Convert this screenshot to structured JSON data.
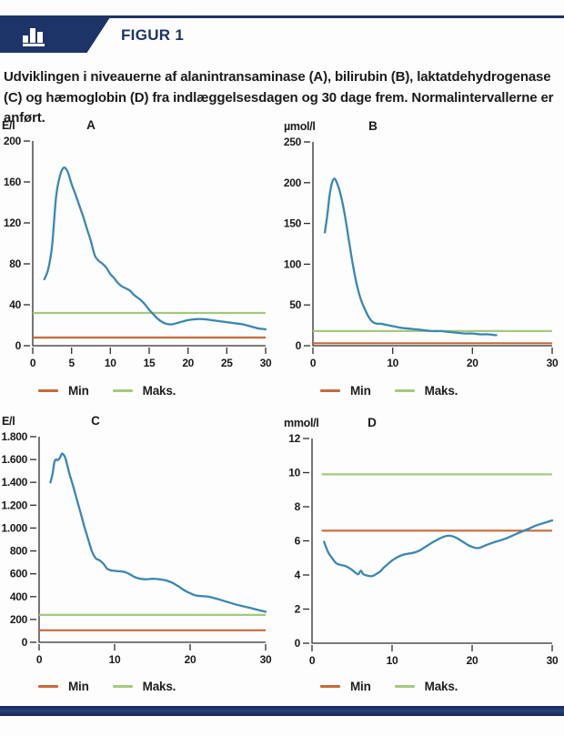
{
  "header": {
    "label": "FIGUR 1"
  },
  "caption": "Udviklingen i niveauerne af alanintransaminase (A), bilirubin (B), laktatdehydrogenase (C) og hæmoglobin (D) fra indlæggelsesdagen og 30 dage frem. Normalintervallerne er anført.",
  "legend": {
    "min_label": "Min",
    "maks_label": "Maks."
  },
  "colors": {
    "navy": "#1d3468",
    "blue": "#3a87b3",
    "orange": "#c7693b",
    "green": "#a4c97c",
    "axis": "#2e2e2e"
  },
  "chart_data": [
    {
      "id": "A",
      "type": "line",
      "title": "A",
      "ylabel": "E/l",
      "xlabel": "",
      "xlim": [
        0,
        30
      ],
      "ylim": [
        0,
        200
      ],
      "x_tick_values": [
        0,
        5,
        10,
        15,
        20,
        25,
        30
      ],
      "x_tick_labels": [
        "0",
        "5",
        "10",
        "15",
        "20",
        "25",
        "30"
      ],
      "y_tick_values": [
        0,
        40,
        80,
        120,
        160,
        200
      ],
      "y_tick_labels": [
        "0",
        "40",
        "80",
        "120",
        "160",
        "200"
      ],
      "normal_min": 8,
      "normal_max": 32,
      "grid": false,
      "legend_entries": [
        "Min",
        "Maks."
      ],
      "series": [
        {
          "name": "alanintransaminase",
          "points": [
            [
              1.5,
              65
            ],
            [
              2,
              75
            ],
            [
              2.5,
              98
            ],
            [
              3,
              145
            ],
            [
              3.5,
              166
            ],
            [
              4,
              174
            ],
            [
              4.5,
              170
            ],
            [
              5,
              158
            ],
            [
              5.5,
              148
            ],
            [
              6,
              137
            ],
            [
              6.5,
              126
            ],
            [
              7,
              114
            ],
            [
              7.5,
              102
            ],
            [
              8,
              88
            ],
            [
              8.5,
              83
            ],
            [
              9,
              80
            ],
            [
              9.5,
              76
            ],
            [
              10,
              70
            ],
            [
              10.5,
              66
            ],
            [
              11,
              61
            ],
            [
              11.5,
              58
            ],
            [
              12,
              56
            ],
            [
              12.5,
              54
            ],
            [
              13,
              50
            ],
            [
              13.5,
              47
            ],
            [
              14,
              44
            ],
            [
              14.5,
              40
            ],
            [
              15,
              35
            ],
            [
              15.5,
              31
            ],
            [
              16,
              27
            ],
            [
              16.5,
              24
            ],
            [
              17,
              22
            ],
            [
              17.5,
              21
            ],
            [
              18,
              21
            ],
            [
              18.5,
              22
            ],
            [
              19,
              23
            ],
            [
              19.5,
              24
            ],
            [
              20,
              25
            ],
            [
              21,
              26
            ],
            [
              22,
              26
            ],
            [
              23,
              25
            ],
            [
              24,
              24
            ],
            [
              25,
              23
            ],
            [
              26,
              22
            ],
            [
              27,
              21
            ],
            [
              28,
              19
            ],
            [
              29,
              17
            ],
            [
              30,
              16
            ]
          ]
        }
      ]
    },
    {
      "id": "B",
      "type": "line",
      "title": "B",
      "ylabel": "µmol/l",
      "xlabel": "",
      "xlim": [
        0,
        30
      ],
      "ylim": [
        0,
        250
      ],
      "x_tick_values": [
        0,
        10,
        20,
        30
      ],
      "x_tick_labels": [
        "0",
        "10",
        "20",
        "30"
      ],
      "y_tick_values": [
        0,
        50,
        100,
        150,
        200,
        250
      ],
      "y_tick_labels": [
        "0",
        "50",
        "100",
        "150",
        "200",
        "250"
      ],
      "normal_min": 3,
      "normal_max": 18,
      "grid": false,
      "legend_entries": [
        "Min",
        "Maks."
      ],
      "series": [
        {
          "name": "bilirubin",
          "points": [
            [
              1.5,
              139
            ],
            [
              1.8,
              160
            ],
            [
              2.1,
              185
            ],
            [
              2.4,
              200
            ],
            [
              2.7,
              205
            ],
            [
              3,
              200
            ],
            [
              3.3,
              192
            ],
            [
              3.6,
              180
            ],
            [
              4,
              160
            ],
            [
              4.5,
              130
            ],
            [
              5,
              100
            ],
            [
              5.5,
              75
            ],
            [
              6,
              57
            ],
            [
              6.5,
              45
            ],
            [
              7,
              35
            ],
            [
              7.5,
              29
            ],
            [
              8,
              27
            ],
            [
              8.5,
              27
            ],
            [
              9,
              26
            ],
            [
              9.5,
              25
            ],
            [
              10,
              24
            ],
            [
              11,
              22
            ],
            [
              12,
              21
            ],
            [
              13,
              20
            ],
            [
              14,
              19
            ],
            [
              15,
              18
            ],
            [
              16,
              18
            ],
            [
              17,
              17
            ],
            [
              18,
              16
            ],
            [
              19,
              15
            ],
            [
              20,
              15
            ],
            [
              21,
              14
            ],
            [
              22,
              14
            ],
            [
              23,
              13
            ]
          ]
        }
      ]
    },
    {
      "id": "C",
      "type": "line",
      "title": "C",
      "ylabel": "E/l",
      "xlabel": "",
      "xlim": [
        0,
        30
      ],
      "ylim": [
        0,
        1800
      ],
      "x_tick_values": [
        0,
        10,
        20,
        30
      ],
      "x_tick_labels": [
        "0",
        "10",
        "20",
        "30"
      ],
      "y_tick_values": [
        0,
        200,
        400,
        600,
        800,
        1000,
        1200,
        1400,
        1600,
        1800
      ],
      "y_tick_labels": [
        "0",
        "200",
        "400",
        "600",
        "800",
        "1.000",
        "1.200",
        "1.400",
        "1.600",
        "1.800"
      ],
      "normal_min": 105,
      "normal_max": 240,
      "grid": false,
      "legend_entries": [
        "Min",
        "Maks."
      ],
      "series": [
        {
          "name": "laktatdehydrogenase",
          "points": [
            [
              1.5,
              1400
            ],
            [
              1.8,
              1480
            ],
            [
              2,
              1570
            ],
            [
              2.2,
              1600
            ],
            [
              2.5,
              1595
            ],
            [
              2.8,
              1620
            ],
            [
              3,
              1650
            ],
            [
              3.2,
              1645
            ],
            [
              3.5,
              1610
            ],
            [
              4,
              1480
            ],
            [
              4.5,
              1370
            ],
            [
              5,
              1250
            ],
            [
              5.5,
              1130
            ],
            [
              6,
              1010
            ],
            [
              6.5,
              900
            ],
            [
              7,
              795
            ],
            [
              7.5,
              735
            ],
            [
              8,
              718
            ],
            [
              8.5,
              690
            ],
            [
              9,
              645
            ],
            [
              9.5,
              630
            ],
            [
              10,
              626
            ],
            [
              10.5,
              622
            ],
            [
              11,
              620
            ],
            [
              11.5,
              612
            ],
            [
              12,
              596
            ],
            [
              12.5,
              576
            ],
            [
              13,
              562
            ],
            [
              13.5,
              555
            ],
            [
              14,
              552
            ],
            [
              14.5,
              553
            ],
            [
              15,
              556
            ],
            [
              15.5,
              554
            ],
            [
              16,
              551
            ],
            [
              16.5,
              546
            ],
            [
              17,
              538
            ],
            [
              17.5,
              525
            ],
            [
              18,
              508
            ],
            [
              18.5,
              488
            ],
            [
              19,
              465
            ],
            [
              19.5,
              445
            ],
            [
              20,
              430
            ],
            [
              20.5,
              415
            ],
            [
              21,
              408
            ],
            [
              21.5,
              405
            ],
            [
              22,
              402
            ],
            [
              22.5,
              398
            ],
            [
              23,
              390
            ],
            [
              24,
              372
            ],
            [
              25,
              352
            ],
            [
              26,
              332
            ],
            [
              27,
              315
            ],
            [
              28,
              300
            ],
            [
              29,
              283
            ],
            [
              30,
              268
            ]
          ]
        }
      ]
    },
    {
      "id": "D",
      "type": "line",
      "title": "D",
      "ylabel": "mmol/l",
      "xlabel": "",
      "xlim": [
        0,
        30
      ],
      "ylim": [
        0,
        12
      ],
      "x_tick_values": [
        0,
        10,
        20,
        30
      ],
      "x_tick_labels": [
        "0",
        "10",
        "20",
        "30"
      ],
      "y_tick_values": [
        0,
        2,
        4,
        6,
        8,
        10,
        12
      ],
      "y_tick_labels": [
        "0",
        "2",
        "4",
        "6",
        "8",
        "10",
        "12"
      ],
      "normal_min": 6.6,
      "normal_max": 9.9,
      "grid": false,
      "legend_entries": [
        "Min",
        "Maks."
      ],
      "series": [
        {
          "name": "hæmoglobin",
          "points": [
            [
              1.5,
              5.95
            ],
            [
              2,
              5.35
            ],
            [
              2.5,
              5.0
            ],
            [
              3,
              4.7
            ],
            [
              3.5,
              4.6
            ],
            [
              4,
              4.55
            ],
            [
              4.5,
              4.45
            ],
            [
              5,
              4.3
            ],
            [
              5.5,
              4.1
            ],
            [
              5.8,
              4.05
            ],
            [
              6.1,
              4.25
            ],
            [
              6.4,
              4.05
            ],
            [
              7,
              3.95
            ],
            [
              7.5,
              3.93
            ],
            [
              8,
              4.05
            ],
            [
              8.5,
              4.2
            ],
            [
              9,
              4.45
            ],
            [
              9.5,
              4.65
            ],
            [
              10,
              4.85
            ],
            [
              10.5,
              5.0
            ],
            [
              11,
              5.12
            ],
            [
              11.5,
              5.2
            ],
            [
              12,
              5.25
            ],
            [
              12.5,
              5.28
            ],
            [
              13,
              5.35
            ],
            [
              13.5,
              5.45
            ],
            [
              14,
              5.6
            ],
            [
              14.5,
              5.75
            ],
            [
              15,
              5.9
            ],
            [
              15.5,
              6.02
            ],
            [
              16,
              6.15
            ],
            [
              16.5,
              6.25
            ],
            [
              17,
              6.3
            ],
            [
              17.5,
              6.28
            ],
            [
              18,
              6.18
            ],
            [
              18.5,
              6.05
            ],
            [
              19,
              5.9
            ],
            [
              19.5,
              5.75
            ],
            [
              20,
              5.65
            ],
            [
              20.5,
              5.58
            ],
            [
              21,
              5.6
            ],
            [
              21.5,
              5.7
            ],
            [
              22,
              5.8
            ],
            [
              22.5,
              5.88
            ],
            [
              23,
              5.95
            ],
            [
              24,
              6.1
            ],
            [
              25,
              6.3
            ],
            [
              26,
              6.5
            ],
            [
              27,
              6.7
            ],
            [
              28,
              6.9
            ],
            [
              29,
              7.05
            ],
            [
              30,
              7.2
            ]
          ]
        }
      ]
    }
  ]
}
